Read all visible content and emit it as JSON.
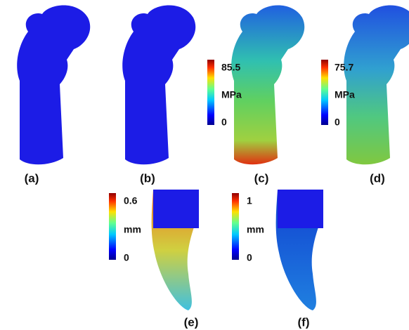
{
  "panels": [
    {
      "label": "(a)"
    },
    {
      "label": "(b)"
    },
    {
      "label": "(c)",
      "colorbar": {
        "max": 85.5,
        "unit": "MPa",
        "min": 0
      }
    },
    {
      "label": "(d)",
      "colorbar": {
        "max": 75.7,
        "unit": "MPa",
        "min": 0
      }
    },
    {
      "label": "(e)",
      "colorbar": {
        "max": 0.6,
        "unit": "mm",
        "min": 0
      }
    },
    {
      "label": "(f)",
      "colorbar": {
        "max": 1,
        "unit": "mm",
        "min": 0
      }
    }
  ]
}
